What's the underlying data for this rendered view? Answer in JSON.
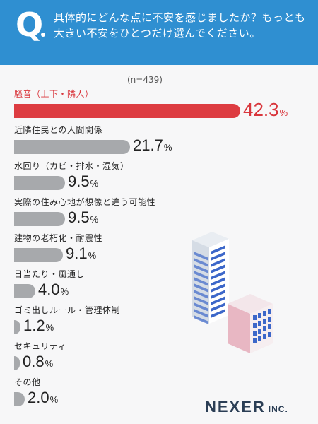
{
  "header": {
    "q_letter": "Q",
    "question": "具体的にどんな点に不安を感じましたか？もっとも大きい不安をひとつだけ選んでください。"
  },
  "sample_size": "(n=439)",
  "chart_data": {
    "type": "bar",
    "orientation": "horizontal",
    "categories": [
      "騒音（上下・隣人）",
      "近隣住民との人間関係",
      "水回り（カビ・排水・湿気）",
      "実際の住み心地が想像と違う可能性",
      "建物の老朽化・耐震性",
      "日当たり・風通し",
      "ゴミ出しルール・管理体制",
      "セキュリティ",
      "その他"
    ],
    "values": [
      42.3,
      21.7,
      9.5,
      9.5,
      9.1,
      4.0,
      1.2,
      0.8,
      2.0
    ],
    "value_labels": [
      "42.3",
      "21.7",
      "9.5",
      "9.5",
      "9.1",
      "4.0",
      "1.2",
      "0.8",
      "2.0"
    ],
    "unit": "%",
    "xlim": [
      0,
      42.3
    ],
    "colors": {
      "highlight": "#dd3c41",
      "default": "#a7a9ac"
    }
  },
  "logo": {
    "name": "NEXER",
    "suffix": "INC."
  },
  "colors": {
    "header": "#2f8fd1",
    "background": "#f7f7f8"
  }
}
